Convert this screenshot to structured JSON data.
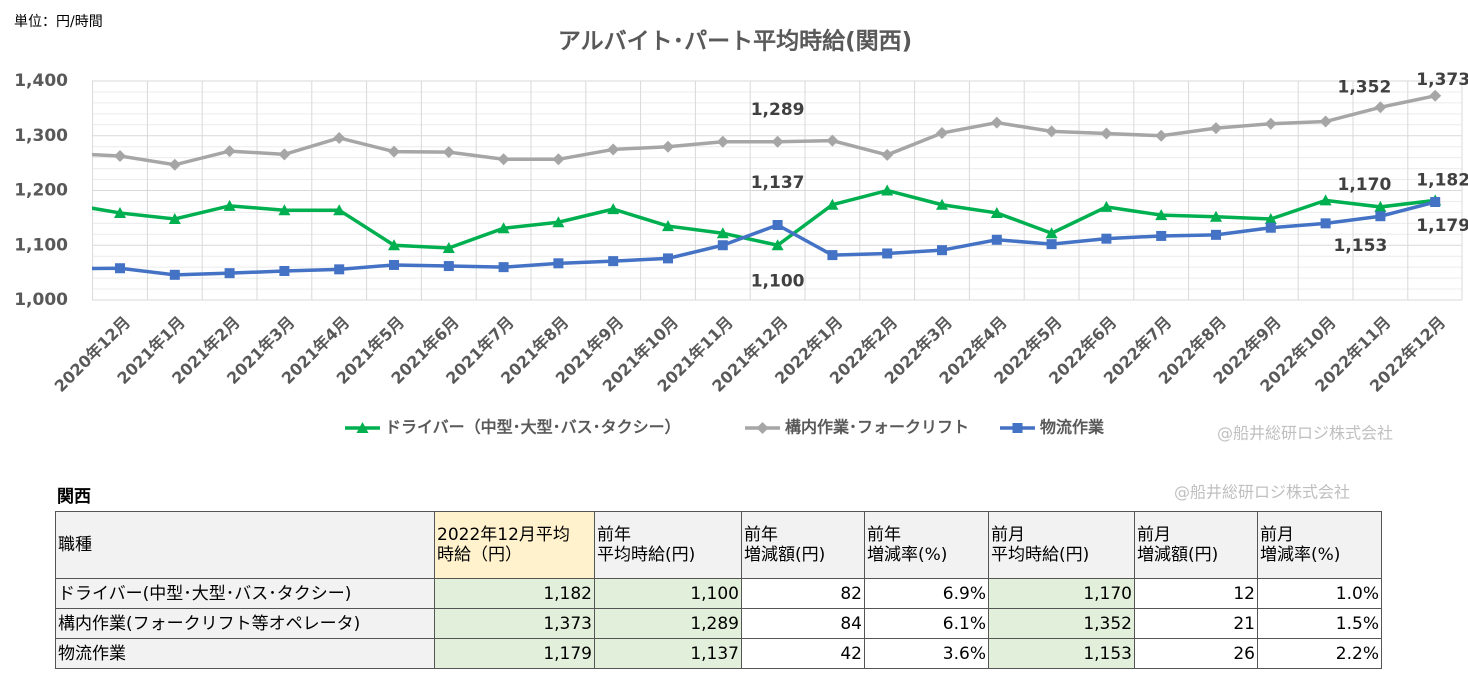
{
  "unit_note": "単位：円/時間",
  "chart_data": {
    "type": "line",
    "title": "アルバイト･パート平均時給(関西)",
    "categories": [
      null,
      "2020年12月",
      "2021年1月",
      "2021年2月",
      "2021年3月",
      "2021年4月",
      "2021年5月",
      "2021年6月",
      "2021年7月",
      "2021年8月",
      "2021年9月",
      "2021年10月",
      "2021年11月",
      "2021年12月",
      "2022年1月",
      "2022年2月",
      "2022年3月",
      "2022年4月",
      "2022年5月",
      "2022年6月",
      "2022年7月",
      "2022年8月",
      "2022年9月",
      "2022年10月",
      "2022年11月",
      "2022年12月"
    ],
    "series": [
      {
        "name": "ドライバー（中型･大型･バス･タクシー）",
        "color": "#00b050",
        "marker": "triangle",
        "values": [
          1176,
          1159,
          1148,
          1172,
          1164,
          1164,
          1100,
          1095,
          1131,
          1142,
          1166,
          1135,
          1122,
          1100,
          1174,
          1200,
          1174,
          1159,
          1122,
          1170,
          1155,
          1152,
          1148,
          1182,
          1170,
          1182
        ],
        "value_labels": [
          null,
          null,
          null,
          null,
          null,
          null,
          null,
          null,
          null,
          null,
          null,
          null,
          null,
          "1,100",
          null,
          null,
          null,
          null,
          null,
          null,
          null,
          null,
          null,
          null,
          "1,170",
          "1,182"
        ]
      },
      {
        "name": "構内作業･フォークリフト",
        "color": "#a6a6a6",
        "marker": "diamond",
        "values": [
          1268,
          1263,
          1247,
          1272,
          1266,
          1296,
          1271,
          1270,
          1257,
          1257,
          1275,
          1280,
          1289,
          1289,
          1291,
          1265,
          1305,
          1324,
          1308,
          1304,
          1300,
          1314,
          1322,
          1326,
          1352,
          1373
        ],
        "value_labels": [
          null,
          null,
          null,
          null,
          null,
          null,
          null,
          null,
          null,
          null,
          null,
          null,
          null,
          "1,289",
          null,
          null,
          null,
          null,
          null,
          null,
          null,
          null,
          null,
          null,
          "1,352",
          "1,373"
        ]
      },
      {
        "name": "物流作業",
        "color": "#4472c4",
        "marker": "square",
        "values": [
          1057,
          1058,
          1046,
          1049,
          1053,
          1056,
          1064,
          1062,
          1060,
          1067,
          1071,
          1076,
          1100,
          1137,
          1082,
          1085,
          1091,
          1110,
          1102,
          1112,
          1117,
          1119,
          1132,
          1140,
          1153,
          1179
        ],
        "value_labels": [
          null,
          null,
          null,
          null,
          null,
          null,
          null,
          null,
          null,
          null,
          null,
          null,
          null,
          "1,137",
          null,
          null,
          null,
          null,
          null,
          null,
          null,
          null,
          null,
          null,
          "1,153",
          "1,179"
        ]
      }
    ],
    "ylim": [
      1000,
      1400
    ],
    "yticks": [
      {
        "value": 1000,
        "label": "1,000"
      },
      {
        "value": 1100,
        "label": "1,100"
      },
      {
        "value": 1200,
        "label": "1,200"
      },
      {
        "value": 1300,
        "label": "1,300"
      },
      {
        "value": 1400,
        "label": "1,400"
      }
    ],
    "grid": true,
    "legend": "bottom",
    "watermark": "@船井総研ロジ株式会社"
  },
  "table": {
    "title": "関西",
    "watermark": "@船井総研ロジ株式会社",
    "header": [
      "職種",
      "2022年12月平均\n時給（円）",
      "前年\n平均時給(円)",
      "前年\n増減額(円)",
      "前年\n増減率(%)",
      "前月\n平均時給(円)",
      "前月\n増減額(円)",
      "前月\n増減率(%)"
    ],
    "rows": [
      [
        "ドライバー(中型･大型･バス･タクシー)",
        "1,182",
        "1,100",
        "82",
        "6.9%",
        "1,170",
        "12",
        "1.0%"
      ],
      [
        "構内作業(フォークリフト等オペレータ)",
        "1,373",
        "1,289",
        "84",
        "6.1%",
        "1,352",
        "21",
        "1.5%"
      ],
      [
        "物流作業",
        "1,179",
        "1,137",
        "42",
        "3.6%",
        "1,153",
        "26",
        "2.2%"
      ]
    ]
  }
}
